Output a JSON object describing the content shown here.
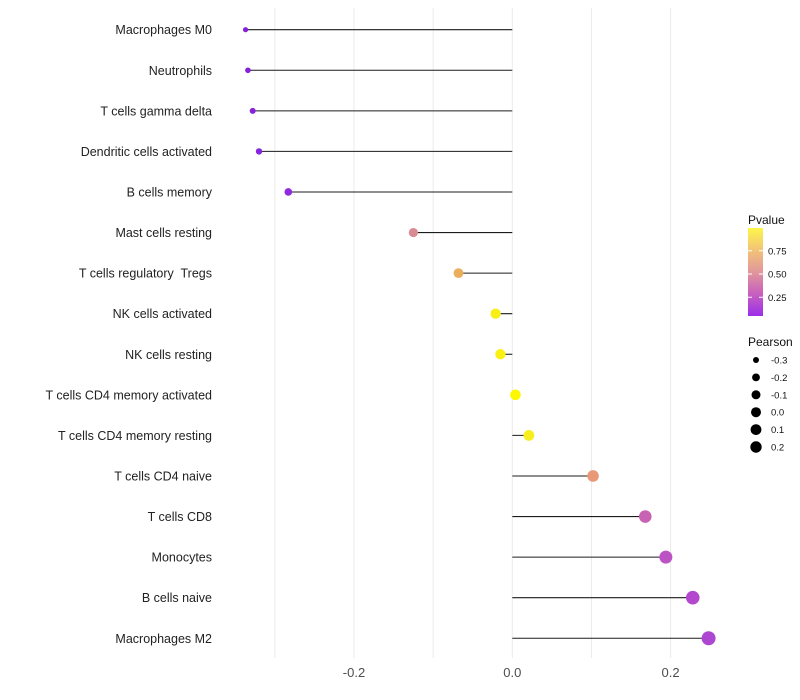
{
  "chart_data": {
    "type": "scatter",
    "subtype": "lollipop",
    "title": "",
    "xlabel": "",
    "ylabel": "",
    "xlim": [
      -0.366,
      0.277
    ],
    "grid": "vertical-only",
    "x_axis": {
      "tick_values": [
        -0.2,
        0.0,
        0.2
      ],
      "tick_labels": [
        "-0.2",
        "0.0",
        "0.2"
      ],
      "gridline_values": [
        -0.3,
        -0.2,
        -0.1,
        0.0,
        0.1,
        0.2
      ]
    },
    "categories": [
      "Macrophages M0",
      "Neutrophils",
      "T cells gamma delta",
      "Dendritic cells activated",
      "B cells memory",
      "Mast cells resting",
      "T cells regulatory  Tregs",
      "NK cells activated",
      "NK cells resting",
      "T cells CD4 memory activated",
      "T cells CD4 memory resting",
      "T cells CD4 naive",
      "T cells CD8",
      "Monocytes",
      "B cells naive",
      "Macrophages M2"
    ],
    "points": [
      {
        "label": "Macrophages M0",
        "pearson": -0.337,
        "pvalue": 0.04,
        "color": "#8321DB",
        "radius": 2.6
      },
      {
        "label": "Neutrophils",
        "pearson": -0.334,
        "pvalue": 0.04,
        "color": "#8321DB",
        "radius": 2.8
      },
      {
        "label": "T cells gamma delta",
        "pearson": -0.328,
        "pvalue": 0.05,
        "color": "#8423DB",
        "radius": 3.0
      },
      {
        "label": "Dendritic cells activated",
        "pearson": -0.32,
        "pvalue": 0.06,
        "color": "#8526DE",
        "radius": 3.2
      },
      {
        "label": "B cells memory",
        "pearson": -0.283,
        "pvalue": 0.09,
        "color": "#9029E2",
        "radius": 3.8
      },
      {
        "label": "Mast cells resting",
        "pearson": -0.125,
        "pvalue": 0.55,
        "color": "#D98A93",
        "radius": 4.6
      },
      {
        "label": "T cells regulatory  Tregs",
        "pearson": -0.068,
        "pvalue": 0.7,
        "color": "#EBAE5C",
        "radius": 4.9
      },
      {
        "label": "NK cells activated",
        "pearson": -0.021,
        "pvalue": 0.9,
        "color": "#F8EF17",
        "radius": 5.2
      },
      {
        "label": "NK cells resting",
        "pearson": -0.015,
        "pvalue": 0.92,
        "color": "#F9F112",
        "radius": 5.2
      },
      {
        "label": "T cells CD4 memory activated",
        "pearson": 0.004,
        "pvalue": 0.99,
        "color": "#FDF702",
        "radius": 5.3
      },
      {
        "label": "T cells CD4 memory resting",
        "pearson": 0.021,
        "pvalue": 0.88,
        "color": "#F7EE20",
        "radius": 5.4
      },
      {
        "label": "T cells CD4 naive",
        "pearson": 0.102,
        "pvalue": 0.62,
        "color": "#E89A78",
        "radius": 5.8
      },
      {
        "label": "T cells CD8",
        "pearson": 0.168,
        "pvalue": 0.42,
        "color": "#C862B2",
        "radius": 6.3
      },
      {
        "label": "Monocytes",
        "pearson": 0.194,
        "pvalue": 0.34,
        "color": "#BC53C4",
        "radius": 6.5
      },
      {
        "label": "B cells naive",
        "pearson": 0.228,
        "pvalue": 0.27,
        "color": "#B348CE",
        "radius": 6.8
      },
      {
        "label": "Macrophages M2",
        "pearson": 0.248,
        "pvalue": 0.22,
        "color": "#AD46D1",
        "radius": 7.0
      }
    ],
    "legend": {
      "position": "right",
      "pvalue": {
        "title": "Pvalue",
        "ticks": [
          {
            "value": 0.75,
            "label": "0.75"
          },
          {
            "value": 0.5,
            "label": "0.50"
          },
          {
            "value": 0.25,
            "label": "0.25"
          }
        ],
        "gradient_top_to_bottom": [
          "#FDF64B",
          "#F2C377",
          "#E1979B",
          "#C75FBE",
          "#9B2FEA"
        ]
      },
      "pearson": {
        "title": "Pearson",
        "entries": [
          {
            "value": -0.3,
            "label": "-0.3",
            "radius": 3.0
          },
          {
            "value": -0.2,
            "label": "-0.2",
            "radius": 3.9
          },
          {
            "value": -0.1,
            "label": "-0.1",
            "radius": 4.5
          },
          {
            "value": 0.0,
            "label": "0.0",
            "radius": 5.0
          },
          {
            "value": 0.1,
            "label": "0.1",
            "radius": 5.4
          },
          {
            "value": 0.2,
            "label": "0.2",
            "radius": 5.7
          }
        ]
      }
    },
    "colors": {
      "stem": "#1C1C1C",
      "gridline": "#EBEBEB",
      "axis_text": "#4D4D4D",
      "category_text": "#222222",
      "legend_text": "#111111",
      "background": "#FFFFFF"
    }
  }
}
